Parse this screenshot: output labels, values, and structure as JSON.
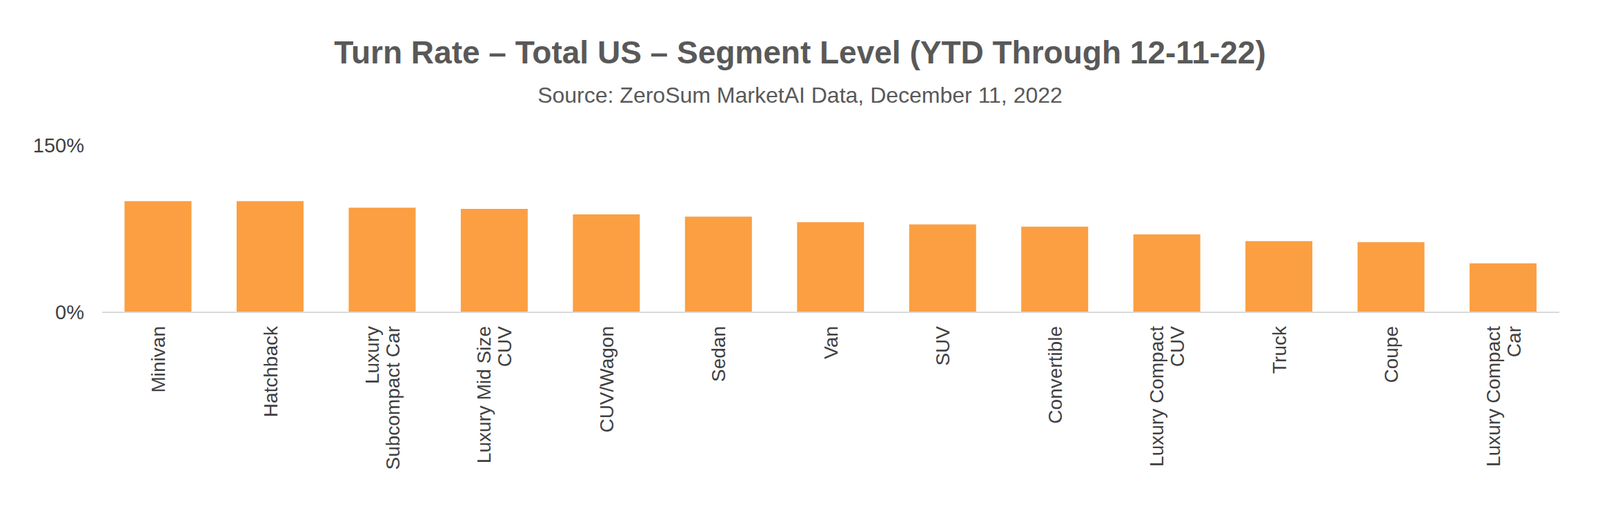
{
  "chart_data": {
    "type": "bar",
    "title": "Turn Rate – Total US – Segment Level (YTD Through 12-11-22)",
    "subtitle": "Source: ZeroSum MarketAI Data, December 11, 2022",
    "categories": [
      "Minivan",
      "Hatchback",
      "Luxury Subcompact Car",
      "Luxury Mid Size CUV",
      "CUV/Wagon",
      "Sedan",
      "Van",
      "SUV",
      "Convertible",
      "Luxury Compact CUV",
      "Truck",
      "Coupe",
      "Luxury Compact Car"
    ],
    "values": [
      100,
      100,
      94,
      93,
      88,
      86,
      81,
      79,
      77,
      70,
      64,
      63,
      44
    ],
    "color": "#fb9f42",
    "ylim": [
      0,
      150
    ],
    "yticks": [
      {
        "value": 0,
        "label": "0%"
      },
      {
        "value": 150,
        "label": "150%"
      }
    ],
    "grid": false
  }
}
